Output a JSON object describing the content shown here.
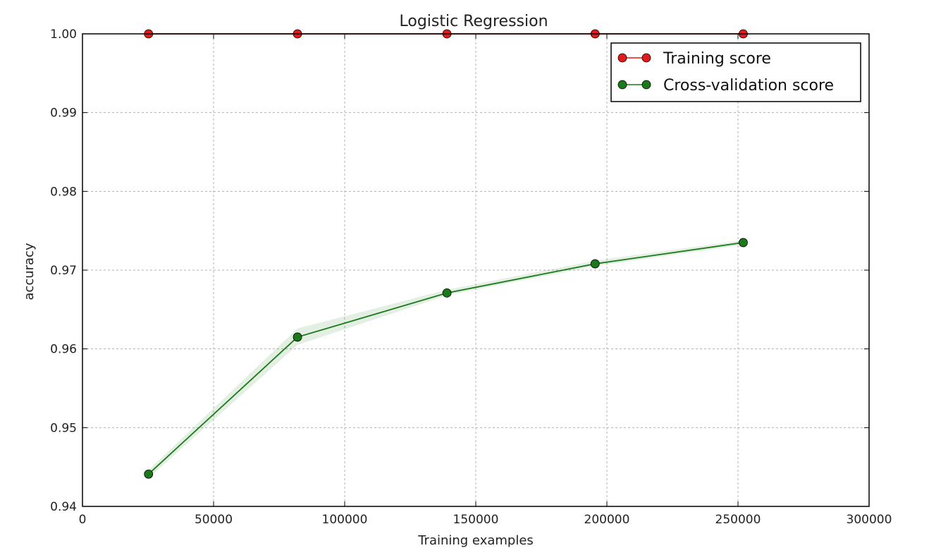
{
  "chart_data": {
    "type": "line",
    "title": "Logistic Regression",
    "xlabel": "Training examples",
    "ylabel": "accuracy",
    "xlim": [
      0,
      300000
    ],
    "ylim": [
      0.94,
      1.0
    ],
    "x_ticks": [
      0,
      50000,
      100000,
      150000,
      200000,
      250000,
      300000
    ],
    "x_tick_labels": [
      "0",
      "50000",
      "100000",
      "150000",
      "200000",
      "250000",
      "300000"
    ],
    "y_ticks": [
      0.94,
      0.95,
      0.96,
      0.97,
      0.98,
      0.99,
      1.0
    ],
    "y_tick_labels": [
      "0.94",
      "0.95",
      "0.96",
      "0.97",
      "0.98",
      "0.99",
      "1.00"
    ],
    "grid": true,
    "legend_position": "top-right",
    "x": [
      25200,
      82000,
      139000,
      195500,
      252000
    ],
    "series": [
      {
        "name": "Training score",
        "color": "#e31a1c",
        "values": [
          1.0,
          1.0,
          1.0,
          1.0,
          1.0
        ],
        "band": [
          [
            1.0,
            1.0
          ],
          [
            1.0,
            1.0
          ],
          [
            1.0,
            1.0
          ],
          [
            1.0,
            1.0
          ],
          [
            1.0,
            1.0
          ]
        ]
      },
      {
        "name": "Cross-validation score",
        "color": "#1a7a1a",
        "values": [
          0.9441,
          0.9615,
          0.9671,
          0.9708,
          0.9735
        ],
        "band": [
          [
            0.9436,
            0.9446
          ],
          [
            0.9605,
            0.9626
          ],
          [
            0.9668,
            0.9675
          ],
          [
            0.9705,
            0.9712
          ],
          [
            0.9732,
            0.9738
          ]
        ]
      }
    ]
  }
}
